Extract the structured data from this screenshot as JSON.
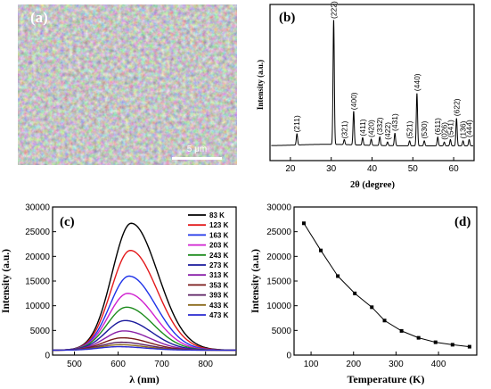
{
  "panel_a": {
    "label": "(a)",
    "scalebar": "5 μm"
  },
  "chart_data": [
    {
      "panel": "(b)",
      "type": "line",
      "xlabel": "2θ (degree)",
      "ylabel": "Intensity (a.u.)",
      "xlim": [
        15,
        65
      ],
      "xticks": [
        20,
        30,
        40,
        50,
        60
      ],
      "peaks": [
        {
          "label": "(211)",
          "x": 21.6,
          "h": 0.09
        },
        {
          "label": "(222)",
          "x": 30.6,
          "h": 1.0
        },
        {
          "label": "(321)",
          "x": 33.2,
          "h": 0.04
        },
        {
          "label": "(400)",
          "x": 35.5,
          "h": 0.27
        },
        {
          "label": "(411)",
          "x": 37.7,
          "h": 0.06
        },
        {
          "label": "(420)",
          "x": 39.8,
          "h": 0.05
        },
        {
          "label": "(332)",
          "x": 41.9,
          "h": 0.07
        },
        {
          "label": "(422)",
          "x": 43.8,
          "h": 0.03
        },
        {
          "label": "(431)",
          "x": 45.6,
          "h": 0.1
        },
        {
          "label": "(521)",
          "x": 49.2,
          "h": 0.04
        },
        {
          "label": "(440)",
          "x": 51.0,
          "h": 0.42
        },
        {
          "label": "(530)",
          "x": 52.8,
          "h": 0.04
        },
        {
          "label": "(611)",
          "x": 56.1,
          "h": 0.07
        },
        {
          "label": "(026)",
          "x": 57.7,
          "h": 0.03
        },
        {
          "label": "(541)",
          "x": 59.2,
          "h": 0.05
        },
        {
          "label": "(622)",
          "x": 60.7,
          "h": 0.22
        },
        {
          "label": "(136)",
          "x": 62.3,
          "h": 0.04
        },
        {
          "label": "(444)",
          "x": 63.8,
          "h": 0.05
        }
      ]
    },
    {
      "panel": "(c)",
      "type": "line",
      "xlabel": "λ (nm)",
      "ylabel": "Intensity (a.u.)",
      "xlim": [
        450,
        870
      ],
      "ylim": [
        0,
        30000
      ],
      "xticks": [
        500,
        600,
        700,
        800
      ],
      "yticks": [
        0,
        5000,
        10000,
        15000,
        20000,
        25000,
        30000
      ],
      "baseline": 1000,
      "series": [
        {
          "name": "83 K",
          "peak_x": 630,
          "peak_y": 26700,
          "color": "#000000"
        },
        {
          "name": "123 K",
          "peak_x": 628,
          "peak_y": 21200,
          "color": "#e31a1c"
        },
        {
          "name": "163 K",
          "peak_x": 625,
          "peak_y": 16000,
          "color": "#1f33e8"
        },
        {
          "name": "203 K",
          "peak_x": 622,
          "peak_y": 12500,
          "color": "#d020d0"
        },
        {
          "name": "243 K",
          "peak_x": 619,
          "peak_y": 9700,
          "color": "#1e8c1e"
        },
        {
          "name": "273 K",
          "peak_x": 616,
          "peak_y": 7000,
          "color": "#1a1a9c"
        },
        {
          "name": "313 K",
          "peak_x": 613,
          "peak_y": 4900,
          "color": "#8a20a8"
        },
        {
          "name": "353 K",
          "peak_x": 610,
          "peak_y": 3500,
          "color": "#7a1a1a"
        },
        {
          "name": "393 K",
          "peak_x": 607,
          "peak_y": 2600,
          "color": "#5a1e60"
        },
        {
          "name": "433 K",
          "peak_x": 604,
          "peak_y": 2100,
          "color": "#8a6a1a"
        },
        {
          "name": "473 K",
          "peak_x": 601,
          "peak_y": 1700,
          "color": "#2a2ad0"
        }
      ]
    },
    {
      "panel": "(d)",
      "type": "line",
      "xlabel": "Temperature (K)",
      "ylabel": "Intensity (a.u.)",
      "xlim": [
        60,
        490
      ],
      "ylim": [
        0,
        30000
      ],
      "xticks": [
        100,
        200,
        300,
        400
      ],
      "yticks": [
        0,
        5000,
        10000,
        15000,
        20000,
        25000,
        30000
      ],
      "x": [
        83,
        123,
        163,
        203,
        243,
        273,
        313,
        353,
        393,
        433,
        473
      ],
      "y": [
        26700,
        21200,
        16000,
        12500,
        9700,
        7000,
        4900,
        3500,
        2600,
        2100,
        1700
      ]
    }
  ]
}
